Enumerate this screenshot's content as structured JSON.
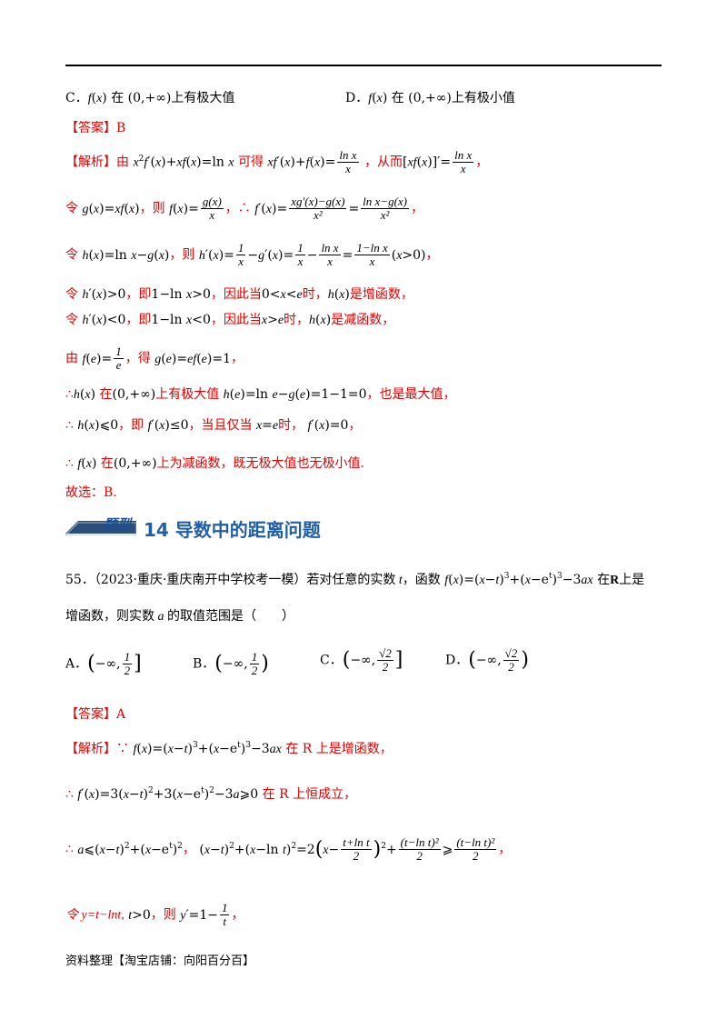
{
  "option_c": {
    "label": "C．",
    "text": "上有极大值"
  },
  "option_d": {
    "label": "D．",
    "text": "上有极小值"
  },
  "answer1": {
    "label": "【答案】",
    "value": "B"
  },
  "analysis_label": "【解析】",
  "a1": {
    "t1": "由",
    "t2": "可得",
    "t3": "，从而",
    "t4": "，"
  },
  "a2": {
    "t1": "令",
    "t2": "，则",
    "t3": "，∴",
    "t4": "，"
  },
  "a3": {
    "t1": "令",
    "t2": "，则",
    "t3": "，"
  },
  "a4": {
    "t1": "令",
    "t2": "，即",
    "t3": "，因此当",
    "t4": "时，",
    "t5": "是增函数，"
  },
  "a5": {
    "t1": "令",
    "t2": "，即",
    "t3": "，因此当",
    "t4": "时，",
    "t5": "是减函数，"
  },
  "a6": {
    "t1": "由",
    "t2": "，得",
    "t3": "，"
  },
  "a7": {
    "t1": "∴",
    "t2": "在",
    "t3": "上有极大值",
    "t4": "，也是最大值，"
  },
  "a8": {
    "t1": "∴",
    "t2": "，即",
    "t3": "，当且仅当",
    "t4": "时，",
    "t5": "，"
  },
  "a9": {
    "t1": "∴",
    "t2": "在",
    "t3": "上为减函数，既无极大值也无极小值."
  },
  "a10": "故选：B.",
  "section": {
    "badge": "题型",
    "title": "14  导数中的距离问题"
  },
  "q55": {
    "num": "55．",
    "source": "（2023·重庆·重庆南开中学校考一模）若对任意的实数",
    "mid": "，函数",
    "end1": "在",
    "end2": "上是",
    "line2": "增函数，则实数",
    "line2b": "的取值范围是（　　）"
  },
  "choices": {
    "a": "A．",
    "b": "B．",
    "c": "C．",
    "d": "D．"
  },
  "answer2": {
    "label": "【答案】",
    "value": "A"
  },
  "b1": {
    "t1": "∵",
    "t2": "在 R 上是增函数，"
  },
  "b2": {
    "t1": "∴",
    "t2": "在 R 上恒成立，"
  },
  "b3": {
    "t1": "∴",
    "t2": "，",
    "t3": "，"
  },
  "b4": {
    "t1": "令 y=t−lnt,",
    "t2": "，则",
    "t3": "，"
  },
  "footer": "资料整理【淘宝店铺：向阳百分百】"
}
